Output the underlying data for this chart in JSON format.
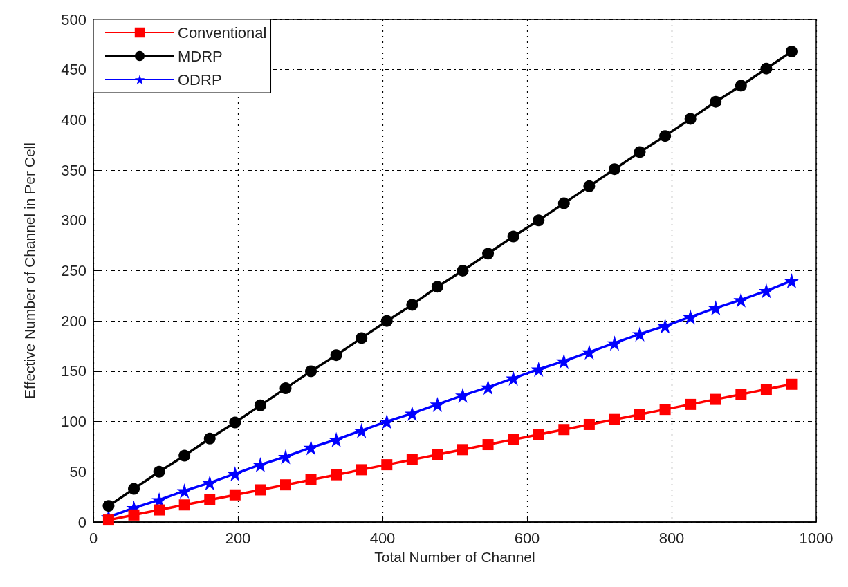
{
  "chart_data": {
    "type": "line",
    "xlabel": "Total Number of Channel",
    "ylabel": "Effective Number of Channel in Per Cell",
    "x": [
      21,
      56,
      91,
      126,
      161,
      196,
      231,
      266,
      301,
      336,
      371,
      406,
      441,
      476,
      511,
      546,
      581,
      616,
      651,
      686,
      721,
      756,
      791,
      826,
      861,
      896,
      931,
      966
    ],
    "series": [
      {
        "name": "Conventional",
        "color": "#ff0000",
        "marker": "square",
        "values": [
          2,
          7,
          12,
          17,
          22,
          27,
          32,
          37,
          42,
          47,
          52,
          57,
          62,
          67,
          72,
          77,
          82,
          87,
          92,
          97,
          102,
          107,
          112,
          117,
          122,
          127,
          132,
          137
        ]
      },
      {
        "name": "MDRP",
        "color": "#000000",
        "marker": "circle",
        "values": [
          16,
          33,
          50,
          66,
          83,
          99,
          116,
          133,
          150,
          166,
          183,
          200,
          216,
          234,
          250,
          267,
          284,
          300,
          317,
          334,
          351,
          368,
          384,
          401,
          418,
          434,
          451,
          468
        ]
      },
      {
        "name": "ODRP",
        "color": "#0000ff",
        "marker": "star",
        "values": [
          5,
          14,
          22,
          31,
          39,
          48,
          57,
          65,
          74,
          82,
          91,
          100,
          108,
          117,
          126,
          134,
          143,
          152,
          160,
          169,
          178,
          187,
          195,
          204,
          213,
          221,
          230,
          240
        ]
      }
    ],
    "xlim": [
      0,
      1000
    ],
    "xticks": [
      0,
      200,
      400,
      600,
      800,
      1000
    ],
    "ylim": [
      0,
      500
    ],
    "yticks": [
      0,
      50,
      100,
      150,
      200,
      250,
      300,
      350,
      400,
      450,
      500
    ],
    "grid": true,
    "legend": "top left",
    "line_style": "solid"
  }
}
